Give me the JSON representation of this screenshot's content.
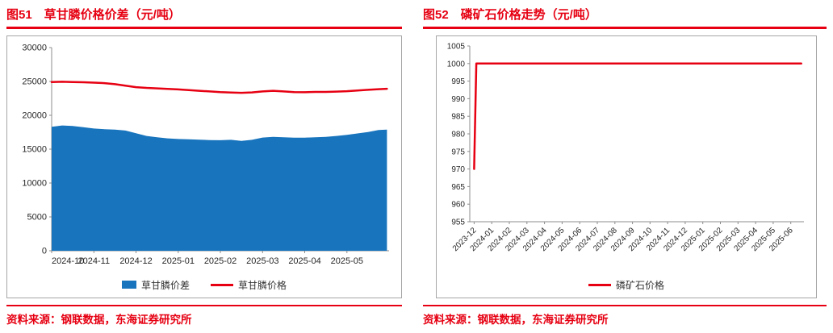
{
  "colors": {
    "accent_red": "#E60012",
    "series_blue": "#1874BD",
    "axis_gray": "#8C8C8C"
  },
  "panels": [
    {
      "title": "图51　草甘膦价格价差（元/吨）",
      "source": "资料来源：钢联数据，东海证券研究所"
    },
    {
      "title": "图52　磷矿石价格走势（元/吨）",
      "source": "资料来源：钢联数据，东海证券研究所"
    }
  ],
  "chart_data": [
    {
      "type": "area",
      "title": "草甘膦价格价差（元/吨）",
      "xlabel": "",
      "ylabel": "",
      "grid": false,
      "legend_position": "bottom",
      "ylim": [
        0,
        30000
      ],
      "y_ticks": [
        0,
        5000,
        10000,
        15000,
        20000,
        25000,
        30000
      ],
      "xlim": [
        0,
        8
      ],
      "x_tick_pos": [
        0,
        1,
        2,
        3,
        4,
        5,
        6,
        7
      ],
      "x_tick_labels": [
        "2024-10",
        "2024-11",
        "2024-12",
        "2025-01",
        "2025-02",
        "2025-03",
        "2025-04",
        "2025-05"
      ],
      "series": [
        {
          "name": "草甘膦价差",
          "kind": "area",
          "color": "#1874BD",
          "points": [
            [
              0,
              18300
            ],
            [
              0.25,
              18500
            ],
            [
              0.5,
              18420
            ],
            [
              0.75,
              18250
            ],
            [
              1,
              18050
            ],
            [
              1.25,
              17950
            ],
            [
              1.5,
              17880
            ],
            [
              1.75,
              17750
            ],
            [
              2,
              17350
            ],
            [
              2.25,
              16950
            ],
            [
              2.5,
              16750
            ],
            [
              2.75,
              16600
            ],
            [
              3,
              16500
            ],
            [
              3.25,
              16450
            ],
            [
              3.5,
              16400
            ],
            [
              3.75,
              16350
            ],
            [
              4,
              16320
            ],
            [
              4.25,
              16380
            ],
            [
              4.5,
              16220
            ],
            [
              4.75,
              16380
            ],
            [
              5,
              16720
            ],
            [
              5.25,
              16820
            ],
            [
              5.5,
              16760
            ],
            [
              5.75,
              16700
            ],
            [
              6,
              16700
            ],
            [
              6.25,
              16760
            ],
            [
              6.5,
              16820
            ],
            [
              6.75,
              16950
            ],
            [
              7,
              17120
            ],
            [
              7.25,
              17320
            ],
            [
              7.5,
              17520
            ],
            [
              7.75,
              17820
            ],
            [
              7.95,
              17880
            ]
          ]
        },
        {
          "name": "草甘膦价格",
          "kind": "line",
          "color": "#E60012",
          "points": [
            [
              0,
              24900
            ],
            [
              0.25,
              24950
            ],
            [
              0.5,
              24900
            ],
            [
              0.75,
              24880
            ],
            [
              1,
              24820
            ],
            [
              1.25,
              24750
            ],
            [
              1.5,
              24600
            ],
            [
              1.75,
              24380
            ],
            [
              2,
              24150
            ],
            [
              2.25,
              24050
            ],
            [
              2.5,
              23980
            ],
            [
              2.75,
              23900
            ],
            [
              3,
              23820
            ],
            [
              3.25,
              23720
            ],
            [
              3.5,
              23620
            ],
            [
              3.75,
              23520
            ],
            [
              4,
              23420
            ],
            [
              4.25,
              23360
            ],
            [
              4.5,
              23320
            ],
            [
              4.75,
              23380
            ],
            [
              5,
              23520
            ],
            [
              5.25,
              23620
            ],
            [
              5.5,
              23520
            ],
            [
              5.75,
              23430
            ],
            [
              6,
              23400
            ],
            [
              6.25,
              23450
            ],
            [
              6.5,
              23450
            ],
            [
              6.75,
              23500
            ],
            [
              7,
              23560
            ],
            [
              7.25,
              23660
            ],
            [
              7.5,
              23760
            ],
            [
              7.75,
              23860
            ],
            [
              7.95,
              23920
            ]
          ]
        }
      ]
    },
    {
      "type": "line",
      "title": "磷矿石价格走势（元/吨）",
      "xlabel": "",
      "ylabel": "",
      "grid": false,
      "legend_position": "bottom",
      "ylim": [
        955,
        1005
      ],
      "y_ticks": [
        955,
        960,
        965,
        970,
        975,
        980,
        985,
        990,
        995,
        1000,
        1005
      ],
      "xlim": [
        -0.25,
        18.75
      ],
      "x_tick_pos": [
        0,
        1,
        2,
        3,
        4,
        5,
        6,
        7,
        8,
        9,
        10,
        11,
        12,
        13,
        14,
        15,
        16,
        17,
        18
      ],
      "x_tick_labels": [
        "2023-12",
        "2024-01",
        "2024-02",
        "2024-03",
        "2024-04",
        "2024-05",
        "2024-06",
        "2024-07",
        "2024-08",
        "2024-09",
        "2024-10",
        "2024-11",
        "2024-12",
        "2025-01",
        "2025-02",
        "2025-03",
        "2025-04",
        "2025-05",
        "2025-06"
      ],
      "series": [
        {
          "name": "磷矿石价格",
          "kind": "line",
          "color": "#E60012",
          "points": [
            [
              0,
              970
            ],
            [
              0.12,
              1000
            ],
            [
              18.6,
              1000
            ]
          ]
        }
      ]
    }
  ]
}
